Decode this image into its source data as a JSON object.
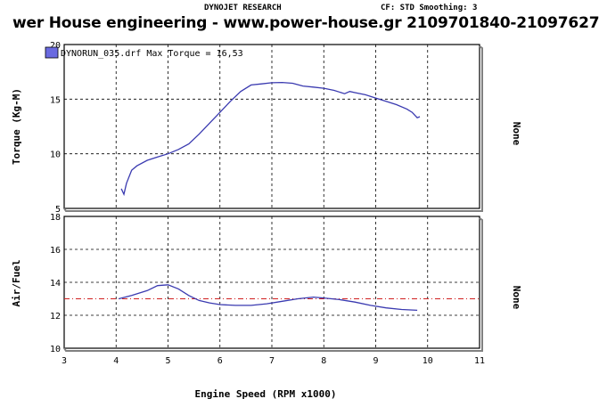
{
  "header": {
    "center": "DYNOJET RESEARCH",
    "right": "CF: STD  Smoothing: 3"
  },
  "banner": "wer House engineering - www.power-house.gr 2109701840-21097627",
  "colors": {
    "curve": "#3a3ab0",
    "reference": "#d02020",
    "legend_swatch": "#6a6ae0",
    "grid": "#000000"
  },
  "chart_data": [
    {
      "type": "line",
      "title": "",
      "legend": "DYNORUN_035.drf Max Torque = 16,53",
      "ylabel": "Torque (Kg-M)",
      "right_label": "None",
      "xlabel": "",
      "xlim": [
        3,
        11
      ],
      "ylim": [
        5,
        20
      ],
      "yticks": [
        5,
        10,
        15,
        20
      ],
      "grid": true,
      "series": [
        {
          "name": "DYNORUN_035.drf",
          "x": [
            4.1,
            4.15,
            4.2,
            4.3,
            4.4,
            4.6,
            4.8,
            5.0,
            5.2,
            5.4,
            5.6,
            5.8,
            6.0,
            6.2,
            6.4,
            6.6,
            6.8,
            7.0,
            7.2,
            7.4,
            7.6,
            7.8,
            8.0,
            8.2,
            8.4,
            8.5,
            8.6,
            8.8,
            9.0,
            9.2,
            9.4,
            9.6,
            9.7,
            9.8,
            9.85
          ],
          "y": [
            6.8,
            6.3,
            7.3,
            8.5,
            8.9,
            9.4,
            9.7,
            10.0,
            10.4,
            10.9,
            11.8,
            12.8,
            13.8,
            14.8,
            15.7,
            16.3,
            16.4,
            16.5,
            16.53,
            16.45,
            16.2,
            16.1,
            16.0,
            15.8,
            15.5,
            15.7,
            15.6,
            15.4,
            15.1,
            14.8,
            14.5,
            14.1,
            13.8,
            13.3,
            13.4
          ]
        }
      ]
    },
    {
      "type": "line",
      "title": "",
      "ylabel": "Air/Fuel",
      "right_label": "None",
      "xlabel": "Engine Speed (RPM x1000)",
      "xlim": [
        3,
        11
      ],
      "xticks": [
        3,
        4,
        5,
        6,
        7,
        8,
        9,
        10,
        11
      ],
      "ylim": [
        10,
        18
      ],
      "yticks": [
        10,
        12,
        14,
        16,
        18
      ],
      "grid": true,
      "reference_line": 13.0,
      "series": [
        {
          "name": "DYNORUN_035.drf",
          "x": [
            4.05,
            4.3,
            4.6,
            4.8,
            5.0,
            5.2,
            5.4,
            5.6,
            5.8,
            6.0,
            6.3,
            6.6,
            6.9,
            7.2,
            7.5,
            7.8,
            8.0,
            8.3,
            8.6,
            8.9,
            9.2,
            9.5,
            9.8
          ],
          "y": [
            13.0,
            13.2,
            13.5,
            13.8,
            13.85,
            13.6,
            13.2,
            12.9,
            12.75,
            12.65,
            12.6,
            12.6,
            12.7,
            12.85,
            13.0,
            13.1,
            13.05,
            12.95,
            12.8,
            12.6,
            12.45,
            12.35,
            12.3
          ]
        }
      ]
    }
  ]
}
